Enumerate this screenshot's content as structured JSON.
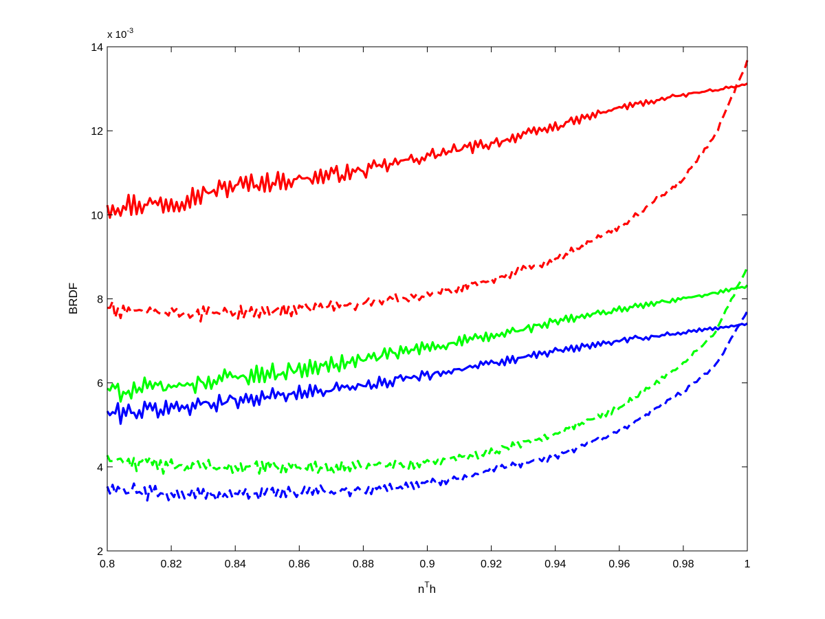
{
  "chart_data": {
    "type": "line",
    "title": "",
    "xlabel": "n",
    "xlabel_sup": "T",
    "xlabel_tail": "h",
    "ylabel": "BRDF",
    "y_exponent_prefix": "x 10",
    "y_exponent_sup": "-3",
    "xlim": [
      0.8,
      1.0
    ],
    "ylim": [
      2,
      14
    ],
    "x_ticks": [
      0.8,
      0.82,
      0.84,
      0.86,
      0.88,
      0.9,
      0.92,
      0.94,
      0.96,
      0.98,
      1.0
    ],
    "x_tick_labels": [
      "0.8",
      "0.82",
      "0.84",
      "0.86",
      "0.88",
      "0.9",
      "0.92",
      "0.94",
      "0.96",
      "0.98",
      "1"
    ],
    "y_ticks": [
      2,
      4,
      6,
      8,
      10,
      12,
      14
    ],
    "y_tick_labels": [
      "2",
      "4",
      "6",
      "8",
      "10",
      "12",
      "14"
    ],
    "grid": false,
    "legend": "none",
    "series": [
      {
        "color": "#ff0000",
        "style": "solid",
        "x": [
          0.8,
          0.82,
          0.84,
          0.86,
          0.88,
          0.9,
          0.92,
          0.94,
          0.96,
          0.98,
          1.0
        ],
        "values": [
          10.2,
          10.3,
          10.7,
          10.85,
          11.05,
          11.4,
          11.7,
          12.1,
          12.55,
          12.85,
          13.1
        ],
        "noise": 0.42,
        "noise_end": 0.04
      },
      {
        "color": "#ff0000",
        "style": "dashed",
        "x": [
          0.8,
          0.82,
          0.84,
          0.86,
          0.88,
          0.9,
          0.92,
          0.94,
          0.96,
          0.98,
          0.99,
          1.0
        ],
        "values": [
          7.75,
          7.65,
          7.65,
          7.75,
          7.9,
          8.1,
          8.45,
          8.95,
          9.7,
          10.85,
          11.9,
          13.65
        ],
        "noise": 0.3,
        "noise_end": 0.05
      },
      {
        "color": "#00ff00",
        "style": "solid",
        "x": [
          0.8,
          0.82,
          0.84,
          0.86,
          0.88,
          0.9,
          0.92,
          0.94,
          0.96,
          0.98,
          1.0
        ],
        "values": [
          5.8,
          5.9,
          6.15,
          6.3,
          6.55,
          6.85,
          7.1,
          7.45,
          7.75,
          8.0,
          8.3
        ],
        "noise": 0.4,
        "noise_end": 0.05
      },
      {
        "color": "#0000ff",
        "style": "solid",
        "x": [
          0.8,
          0.82,
          0.84,
          0.86,
          0.88,
          0.9,
          0.92,
          0.94,
          0.96,
          0.98,
          1.0
        ],
        "values": [
          5.25,
          5.4,
          5.6,
          5.75,
          5.95,
          6.2,
          6.45,
          6.75,
          7.0,
          7.2,
          7.4
        ],
        "noise": 0.36,
        "noise_end": 0.04
      },
      {
        "color": "#00ff00",
        "style": "dashed",
        "x": [
          0.8,
          0.82,
          0.84,
          0.86,
          0.88,
          0.9,
          0.92,
          0.94,
          0.96,
          0.98,
          0.99,
          1.0
        ],
        "values": [
          4.2,
          4.0,
          4.0,
          4.0,
          4.0,
          4.1,
          4.35,
          4.8,
          5.4,
          6.45,
          7.2,
          8.75
        ],
        "noise": 0.3,
        "noise_end": 0.05
      },
      {
        "color": "#0000ff",
        "style": "dashed",
        "x": [
          0.8,
          0.82,
          0.84,
          0.86,
          0.88,
          0.9,
          0.92,
          0.94,
          0.96,
          0.98,
          0.99,
          1.0
        ],
        "values": [
          3.45,
          3.35,
          3.35,
          3.4,
          3.45,
          3.6,
          3.9,
          4.25,
          4.85,
          5.8,
          6.4,
          7.7
        ],
        "noise": 0.28,
        "noise_end": 0.05
      }
    ]
  }
}
